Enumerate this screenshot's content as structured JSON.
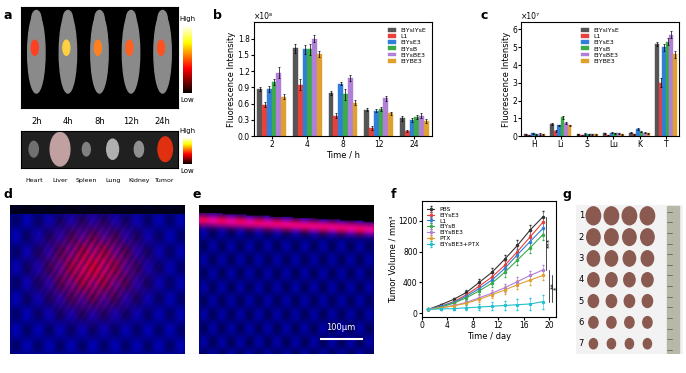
{
  "panel_labels": [
    "a",
    "b",
    "c",
    "d",
    "e",
    "f",
    "g"
  ],
  "images": {
    "a": {
      "time_labels": [
        "2h",
        "4h",
        "8h",
        "12h",
        "24h"
      ],
      "scale_labels": [
        "High",
        "Low"
      ],
      "organs": [
        "Heart",
        "Liver",
        "Spleen",
        "Lung",
        "Kidney",
        "Tumor"
      ]
    },
    "e": {
      "scale_bar": "100μm"
    },
    "g": {
      "row_labels": [
        "1",
        "2",
        "3",
        "4",
        "5",
        "6",
        "7"
      ]
    }
  },
  "chart_data": [
    {
      "panel": "b",
      "type": "bar",
      "x_label": "Time / h",
      "y_label": "Fluorescence Intensity",
      "axis_note": "×10⁸",
      "categories": [
        "2",
        "4",
        "8",
        "12",
        "24"
      ],
      "ylim": [
        0,
        2.1
      ],
      "yticks": [
        0.0,
        0.3,
        0.6,
        0.9,
        1.2,
        1.5,
        1.8
      ],
      "legend": "upper right",
      "series": [
        {
          "name": "EIYsIYsE",
          "color": "#555555",
          "values": [
            0.87,
            1.62,
            0.8,
            0.49,
            0.33
          ],
          "errors": [
            0.04,
            0.08,
            0.04,
            0.03,
            0.05
          ]
        },
        {
          "name": "L1",
          "color": "#e8403a",
          "values": [
            0.58,
            0.95,
            0.38,
            0.15,
            0.1
          ],
          "errors": [
            0.05,
            0.1,
            0.05,
            0.03,
            0.02
          ]
        },
        {
          "name": "EIYsE3",
          "color": "#2f7fd8",
          "values": [
            0.87,
            1.6,
            0.97,
            0.47,
            0.3
          ],
          "errors": [
            0.05,
            0.08,
            0.03,
            0.03,
            0.04
          ]
        },
        {
          "name": "EIYsB",
          "color": "#3aaa4a",
          "values": [
            1.0,
            1.6,
            0.77,
            0.5,
            0.35
          ],
          "errors": [
            0.06,
            0.1,
            0.1,
            0.03,
            0.04
          ]
        },
        {
          "name": "EIYsBE3",
          "color": "#b07fd8",
          "values": [
            1.17,
            1.8,
            1.07,
            0.7,
            0.38
          ],
          "errors": [
            0.1,
            0.07,
            0.06,
            0.05,
            0.04
          ]
        },
        {
          "name": "EIYBE3",
          "color": "#e0a030",
          "values": [
            0.73,
            1.52,
            0.62,
            0.42,
            0.28
          ],
          "errors": [
            0.05,
            0.06,
            0.04,
            0.03,
            0.03
          ]
        }
      ]
    },
    {
      "panel": "c",
      "type": "bar",
      "y_label": "Fluorescence Intensity",
      "axis_note": "×10⁷",
      "categories": [
        "H",
        "Li",
        "S",
        "Lu",
        "K",
        "T"
      ],
      "ylim": [
        0,
        6.4
      ],
      "yticks": [
        0,
        1,
        2,
        3,
        4,
        5,
        6
      ],
      "legend": "upper center",
      "series": [
        {
          "name": "EIYsIYsE",
          "color": "#555555",
          "values": [
            0.1,
            0.7,
            0.1,
            0.15,
            0.2,
            5.2
          ],
          "errors": [
            0.03,
            0.05,
            0.03,
            0.03,
            0.03,
            0.12
          ]
        },
        {
          "name": "L1",
          "color": "#e8403a",
          "values": [
            0.05,
            0.3,
            0.05,
            0.05,
            0.1,
            3.0
          ],
          "errors": [
            0.02,
            0.04,
            0.02,
            0.02,
            0.02,
            0.25
          ]
        },
        {
          "name": "EIYsE3",
          "color": "#2f7fd8",
          "values": [
            0.15,
            0.6,
            0.12,
            0.2,
            0.4,
            5.0
          ],
          "errors": [
            0.03,
            0.05,
            0.03,
            0.03,
            0.05,
            0.2
          ]
        },
        {
          "name": "EIYsB",
          "color": "#3aaa4a",
          "values": [
            0.1,
            1.05,
            0.1,
            0.15,
            0.25,
            5.3
          ],
          "errors": [
            0.03,
            0.1,
            0.03,
            0.03,
            0.03,
            0.2
          ]
        },
        {
          "name": "EIYsBE3",
          "color": "#b07fd8",
          "values": [
            0.12,
            0.75,
            0.1,
            0.15,
            0.2,
            5.7
          ],
          "errors": [
            0.03,
            0.05,
            0.03,
            0.03,
            0.03,
            0.2
          ]
        },
        {
          "name": "EIYBE3",
          "color": "#e0a030",
          "values": [
            0.1,
            0.6,
            0.1,
            0.1,
            0.15,
            4.6
          ],
          "errors": [
            0.03,
            0.05,
            0.03,
            0.03,
            0.03,
            0.2
          ]
        }
      ]
    },
    {
      "panel": "f",
      "type": "line",
      "x_label": "Time / day",
      "y_label": "Tumor Volume / mm³",
      "x": [
        1,
        3,
        5,
        7,
        9,
        11,
        13,
        15,
        17,
        19
      ],
      "xlim": [
        0,
        21
      ],
      "xticks": [
        0,
        4,
        8,
        12,
        16,
        20
      ],
      "ylim": [
        -50,
        1450
      ],
      "yticks": [
        0,
        400,
        800,
        1200
      ],
      "legend": "upper left",
      "marker": "o",
      "annotations": [
        {
          "text": "***",
          "series": [
            "PBS",
            "EIYsBE3"
          ]
        },
        {
          "text": "**",
          "series": [
            "EIYsBE3",
            "EIYsBE3+PTX"
          ]
        },
        {
          "text": "*",
          "series": [
            "PTX",
            "EIYsBE3+PTX"
          ]
        }
      ],
      "series": [
        {
          "name": "PBS",
          "color": "#333333",
          "values": [
            50,
            110,
            180,
            270,
            400,
            530,
            700,
            880,
            1080,
            1250
          ],
          "errors": [
            5,
            15,
            20,
            30,
            40,
            50,
            60,
            70,
            70,
            70
          ]
        },
        {
          "name": "EIYsE3",
          "color": "#e8403a",
          "values": [
            50,
            90,
            150,
            240,
            350,
            470,
            620,
            800,
            990,
            1180
          ],
          "errors": [
            5,
            15,
            20,
            30,
            40,
            50,
            60,
            70,
            70,
            70
          ]
        },
        {
          "name": "L1",
          "color": "#2f7fd8",
          "values": [
            50,
            90,
            140,
            220,
            320,
            430,
            580,
            760,
            930,
            1100
          ],
          "errors": [
            5,
            15,
            20,
            30,
            40,
            50,
            60,
            70,
            70,
            70
          ]
        },
        {
          "name": "EIYsB",
          "color": "#3aaa4a",
          "values": [
            50,
            80,
            130,
            200,
            290,
            390,
            530,
            690,
            850,
            1020
          ],
          "errors": [
            5,
            15,
            20,
            30,
            40,
            50,
            60,
            70,
            70,
            70
          ]
        },
        {
          "name": "EIYsBE3",
          "color": "#b07fd8",
          "values": [
            50,
            70,
            100,
            140,
            200,
            260,
            330,
            410,
            490,
            560
          ],
          "errors": [
            5,
            10,
            15,
            20,
            30,
            40,
            50,
            60,
            60,
            60
          ]
        },
        {
          "name": "PTX",
          "color": "#e0a030",
          "values": [
            50,
            70,
            95,
            130,
            180,
            240,
            300,
            370,
            430,
            490
          ],
          "errors": [
            5,
            10,
            15,
            20,
            30,
            40,
            50,
            60,
            60,
            60
          ]
        },
        {
          "name": "EIYsBE3+PTX",
          "color": "#20c0d0",
          "values": [
            50,
            55,
            60,
            70,
            80,
            90,
            100,
            110,
            120,
            150
          ],
          "errors": [
            5,
            10,
            20,
            30,
            40,
            50,
            60,
            70,
            80,
            90
          ]
        }
      ]
    }
  ]
}
